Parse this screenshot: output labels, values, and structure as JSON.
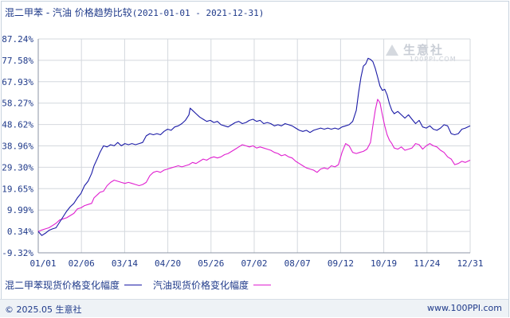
{
  "header": {
    "title": "混二甲苯 - 汽油  价格趋势比较",
    "date_range": "(2021-01-01 - 2021-12-31)"
  },
  "watermark": {
    "name": "生意社",
    "url": "100PPI.COM"
  },
  "legend": {
    "series1_label": "混二甲苯现货价格变化幅度",
    "series2_label": "汽油现货价格变化幅度"
  },
  "footer": {
    "left": "© 2025.05 生意社",
    "right": "www.100PPI.com"
  },
  "colors": {
    "series1": "#1a1aa6",
    "series2": "#e020d0",
    "grid": "#d4d8de",
    "axis_text": "#1f3a8a"
  },
  "chart_data": {
    "type": "line",
    "title": "混二甲苯 - 汽油  价格趋势比较",
    "xlabel": "",
    "ylabel": "",
    "x_ticks": [
      "01/01",
      "02/06",
      "03/14",
      "04/20",
      "05/26",
      "07/02",
      "08/07",
      "09/12",
      "10/19",
      "11/24",
      "12/31"
    ],
    "y_ticks": [
      "87.24%",
      "77.58%",
      "67.93%",
      "58.27%",
      "48.62%",
      "38.96%",
      "29.30%",
      "19.65%",
      "9.99%",
      "0.34%",
      "-9.32%"
    ],
    "ylim": [
      -9.32,
      87.24
    ],
    "xlim": [
      0,
      364
    ],
    "grid": true,
    "legend_position": "bottom",
    "series": [
      {
        "name": "混二甲苯现货价格变化幅度",
        "color": "#1a1aa6",
        "points": [
          [
            0,
            0.3
          ],
          [
            3,
            -1.5
          ],
          [
            6,
            -0.5
          ],
          [
            9,
            0.8
          ],
          [
            12,
            1.5
          ],
          [
            15,
            2.0
          ],
          [
            18,
            4.5
          ],
          [
            21,
            7.0
          ],
          [
            24,
            9.5
          ],
          [
            27,
            11.5
          ],
          [
            30,
            13.0
          ],
          [
            33,
            15.5
          ],
          [
            36,
            17.5
          ],
          [
            39,
            21.0
          ],
          [
            42,
            23.0
          ],
          [
            45,
            26.5
          ],
          [
            47,
            30.0
          ],
          [
            50,
            33.5
          ],
          [
            52,
            36.0
          ],
          [
            55,
            39.0
          ],
          [
            58,
            38.5
          ],
          [
            61,
            39.5
          ],
          [
            64,
            39.0
          ],
          [
            67,
            40.5
          ],
          [
            70,
            39.0
          ],
          [
            73,
            40.0
          ],
          [
            76,
            39.5
          ],
          [
            79,
            40.0
          ],
          [
            82,
            39.5
          ],
          [
            85,
            40.0
          ],
          [
            88,
            40.5
          ],
          [
            91,
            43.5
          ],
          [
            94,
            44.5
          ],
          [
            97,
            44.0
          ],
          [
            100,
            44.5
          ],
          [
            103,
            44.0
          ],
          [
            106,
            45.5
          ],
          [
            109,
            46.5
          ],
          [
            112,
            46.0
          ],
          [
            115,
            47.5
          ],
          [
            118,
            48.0
          ],
          [
            121,
            49.0
          ],
          [
            124,
            50.5
          ],
          [
            127,
            53.0
          ],
          [
            128,
            56.0
          ],
          [
            130,
            55.0
          ],
          [
            133,
            53.5
          ],
          [
            136,
            52.0
          ],
          [
            139,
            51.0
          ],
          [
            142,
            50.0
          ],
          [
            145,
            50.5
          ],
          [
            148,
            49.5
          ],
          [
            151,
            50.0
          ],
          [
            154,
            48.5
          ],
          [
            157,
            48.0
          ],
          [
            160,
            47.5
          ],
          [
            163,
            48.5
          ],
          [
            166,
            49.5
          ],
          [
            169,
            50.0
          ],
          [
            172,
            49.0
          ],
          [
            175,
            49.5
          ],
          [
            178,
            50.5
          ],
          [
            181,
            51.0
          ],
          [
            184,
            50.0
          ],
          [
            187,
            50.5
          ],
          [
            190,
            49.0
          ],
          [
            193,
            49.5
          ],
          [
            196,
            49.0
          ],
          [
            199,
            48.0
          ],
          [
            202,
            48.5
          ],
          [
            205,
            48.0
          ],
          [
            208,
            49.0
          ],
          [
            211,
            48.5
          ],
          [
            214,
            48.0
          ],
          [
            217,
            47.0
          ],
          [
            220,
            46.0
          ],
          [
            223,
            45.5
          ],
          [
            226,
            46.0
          ],
          [
            229,
            45.0
          ],
          [
            232,
            46.0
          ],
          [
            235,
            46.5
          ],
          [
            238,
            47.0
          ],
          [
            241,
            46.5
          ],
          [
            244,
            47.0
          ],
          [
            247,
            46.5
          ],
          [
            250,
            47.0
          ],
          [
            253,
            46.5
          ],
          [
            256,
            47.5
          ],
          [
            259,
            48.0
          ],
          [
            262,
            48.5
          ],
          [
            265,
            50.0
          ],
          [
            268,
            55.0
          ],
          [
            270,
            63.0
          ],
          [
            272,
            70.0
          ],
          [
            274,
            75.0
          ],
          [
            276,
            76.0
          ],
          [
            278,
            78.5
          ],
          [
            280,
            78.0
          ],
          [
            282,
            77.0
          ],
          [
            284,
            74.0
          ],
          [
            286,
            70.0
          ],
          [
            288,
            66.0
          ],
          [
            290,
            64.0
          ],
          [
            292,
            64.5
          ],
          [
            294,
            62.0
          ],
          [
            296,
            58.0
          ],
          [
            298,
            55.0
          ],
          [
            300,
            53.5
          ],
          [
            303,
            54.5
          ],
          [
            306,
            53.0
          ],
          [
            309,
            51.5
          ],
          [
            312,
            53.0
          ],
          [
            315,
            51.0
          ],
          [
            318,
            49.0
          ],
          [
            321,
            50.5
          ],
          [
            324,
            47.5
          ],
          [
            327,
            47.0
          ],
          [
            330,
            48.0
          ],
          [
            333,
            46.5
          ],
          [
            336,
            46.0
          ],
          [
            339,
            47.0
          ],
          [
            342,
            48.5
          ],
          [
            345,
            48.0
          ],
          [
            348,
            44.5
          ],
          [
            351,
            44.0
          ],
          [
            354,
            44.5
          ],
          [
            357,
            46.5
          ],
          [
            360,
            47.0
          ],
          [
            364,
            48.0
          ]
        ]
      },
      {
        "name": "汽油现货价格变化幅度",
        "color": "#e020d0",
        "points": [
          [
            0,
            0.3
          ],
          [
            3,
            1.0
          ],
          [
            6,
            1.5
          ],
          [
            9,
            2.0
          ],
          [
            12,
            3.0
          ],
          [
            15,
            4.0
          ],
          [
            18,
            5.5
          ],
          [
            21,
            6.0
          ],
          [
            24,
            6.5
          ],
          [
            27,
            7.5
          ],
          [
            30,
            8.5
          ],
          [
            33,
            10.5
          ],
          [
            36,
            11.0
          ],
          [
            39,
            12.0
          ],
          [
            42,
            12.5
          ],
          [
            45,
            13.0
          ],
          [
            47,
            15.5
          ],
          [
            50,
            17.0
          ],
          [
            52,
            18.0
          ],
          [
            55,
            18.5
          ],
          [
            58,
            21.0
          ],
          [
            61,
            22.5
          ],
          [
            64,
            23.5
          ],
          [
            67,
            23.0
          ],
          [
            70,
            22.5
          ],
          [
            73,
            22.0
          ],
          [
            76,
            22.5
          ],
          [
            79,
            22.0
          ],
          [
            82,
            21.5
          ],
          [
            85,
            21.0
          ],
          [
            88,
            21.5
          ],
          [
            91,
            22.5
          ],
          [
            94,
            25.5
          ],
          [
            97,
            27.0
          ],
          [
            100,
            27.5
          ],
          [
            103,
            27.0
          ],
          [
            106,
            28.0
          ],
          [
            109,
            28.5
          ],
          [
            112,
            29.0
          ],
          [
            115,
            29.5
          ],
          [
            118,
            30.0
          ],
          [
            121,
            29.5
          ],
          [
            124,
            30.0
          ],
          [
            127,
            30.5
          ],
          [
            130,
            31.5
          ],
          [
            133,
            31.0
          ],
          [
            136,
            32.0
          ],
          [
            139,
            33.0
          ],
          [
            142,
            32.5
          ],
          [
            145,
            33.5
          ],
          [
            148,
            34.0
          ],
          [
            151,
            33.5
          ],
          [
            154,
            34.0
          ],
          [
            157,
            35.0
          ],
          [
            160,
            35.5
          ],
          [
            163,
            36.5
          ],
          [
            166,
            37.5
          ],
          [
            169,
            38.5
          ],
          [
            172,
            39.5
          ],
          [
            175,
            39.0
          ],
          [
            178,
            38.5
          ],
          [
            181,
            39.0
          ],
          [
            184,
            38.0
          ],
          [
            187,
            38.5
          ],
          [
            190,
            38.0
          ],
          [
            193,
            37.5
          ],
          [
            196,
            37.0
          ],
          [
            199,
            36.0
          ],
          [
            202,
            35.5
          ],
          [
            205,
            34.5
          ],
          [
            208,
            35.0
          ],
          [
            211,
            34.0
          ],
          [
            214,
            33.5
          ],
          [
            217,
            32.0
          ],
          [
            220,
            31.0
          ],
          [
            223,
            30.0
          ],
          [
            226,
            29.0
          ],
          [
            229,
            28.5
          ],
          [
            232,
            28.0
          ],
          [
            235,
            27.0
          ],
          [
            238,
            28.5
          ],
          [
            241,
            29.0
          ],
          [
            244,
            28.5
          ],
          [
            247,
            30.0
          ],
          [
            250,
            29.5
          ],
          [
            253,
            30.5
          ],
          [
            256,
            36.0
          ],
          [
            259,
            40.0
          ],
          [
            262,
            39.0
          ],
          [
            265,
            36.0
          ],
          [
            268,
            35.5
          ],
          [
            271,
            36.0
          ],
          [
            274,
            36.5
          ],
          [
            277,
            37.5
          ],
          [
            280,
            40.5
          ],
          [
            282,
            48.0
          ],
          [
            284,
            55.0
          ],
          [
            286,
            60.0
          ],
          [
            288,
            58.5
          ],
          [
            290,
            53.0
          ],
          [
            292,
            48.0
          ],
          [
            294,
            44.0
          ],
          [
            296,
            41.5
          ],
          [
            298,
            40.0
          ],
          [
            300,
            38.0
          ],
          [
            303,
            37.5
          ],
          [
            306,
            38.5
          ],
          [
            309,
            37.0
          ],
          [
            312,
            37.5
          ],
          [
            315,
            38.0
          ],
          [
            318,
            40.0
          ],
          [
            321,
            39.5
          ],
          [
            324,
            37.5
          ],
          [
            327,
            39.0
          ],
          [
            330,
            40.0
          ],
          [
            333,
            39.0
          ],
          [
            336,
            38.5
          ],
          [
            339,
            37.0
          ],
          [
            342,
            36.0
          ],
          [
            345,
            34.0
          ],
          [
            348,
            33.0
          ],
          [
            351,
            30.5
          ],
          [
            354,
            31.0
          ],
          [
            357,
            32.0
          ],
          [
            360,
            31.5
          ],
          [
            364,
            32.5
          ]
        ]
      }
    ]
  }
}
